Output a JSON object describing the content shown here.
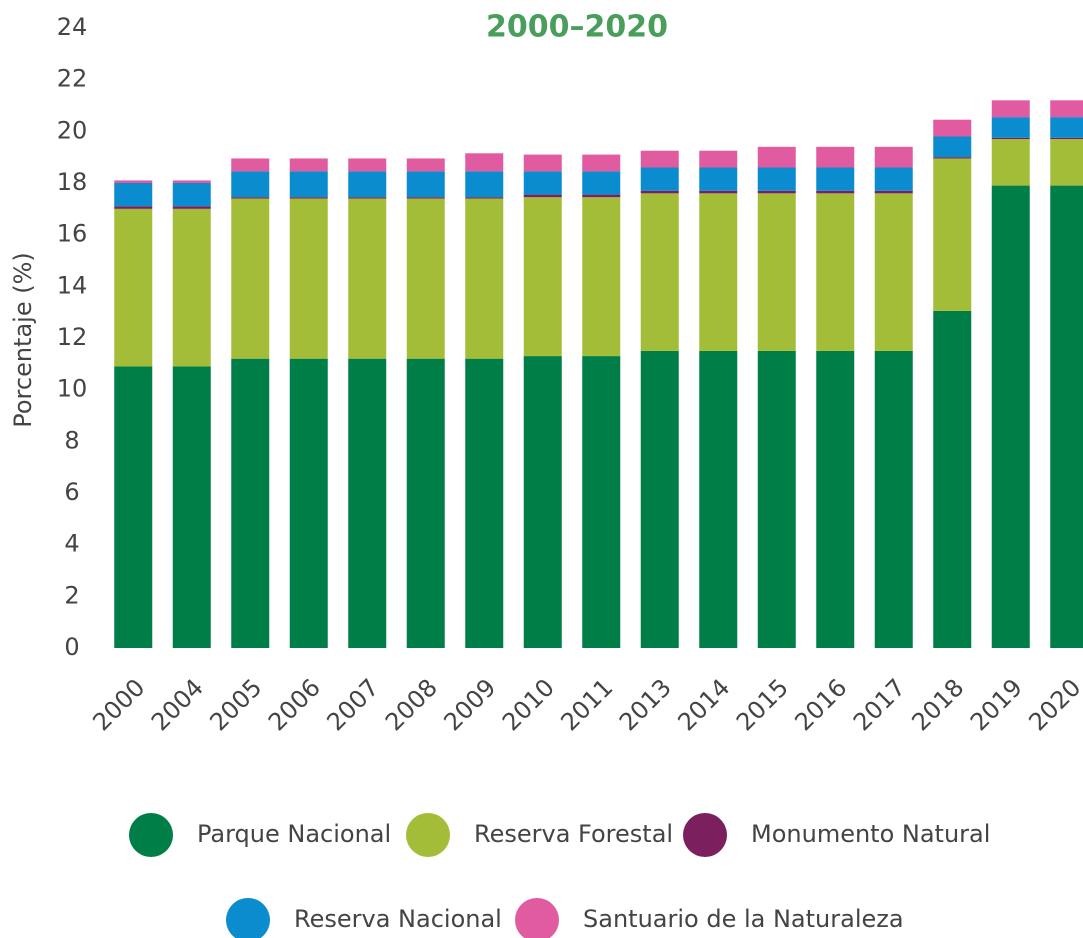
{
  "chart_data": {
    "type": "stacked_bar",
    "title": "2000–2020",
    "y_label": "Porcentaje (%)",
    "categories": [
      "2000",
      "2004",
      "2005",
      "2006",
      "2007",
      "2008",
      "2009",
      "2010",
      "2011",
      "2013",
      "2014",
      "2015",
      "2016",
      "2017",
      "2018",
      "2019",
      "2020"
    ],
    "series": [
      {
        "name": "Parque Nacional",
        "color": "#007e48",
        "values": [
          10.9,
          10.9,
          11.2,
          11.2,
          11.2,
          11.2,
          11.2,
          11.3,
          11.3,
          11.5,
          11.5,
          11.5,
          11.5,
          11.5,
          13.05,
          17.9,
          17.9
        ]
      },
      {
        "name": "Reserva Forestal",
        "color": "#a3bd38",
        "values": [
          6.1,
          6.1,
          6.2,
          6.2,
          6.2,
          6.2,
          6.2,
          6.15,
          6.15,
          6.1,
          6.1,
          6.1,
          6.1,
          6.1,
          5.9,
          1.8,
          1.8
        ]
      },
      {
        "name": "Monumento Natural",
        "color": "#7b1f5e",
        "values": [
          0.1,
          0.1,
          0.05,
          0.05,
          0.05,
          0.05,
          0.05,
          0.1,
          0.1,
          0.1,
          0.1,
          0.1,
          0.1,
          0.1,
          0.05,
          0.05,
          0.05
        ]
      },
      {
        "name": "Reserva Nacional",
        "color": "#0a8ccf",
        "values": [
          0.9,
          0.9,
          1.0,
          1.0,
          1.0,
          1.0,
          1.0,
          0.9,
          0.9,
          0.9,
          0.9,
          0.9,
          0.9,
          0.9,
          0.8,
          0.8,
          0.8
        ]
      },
      {
        "name": "Santuario de la Naturaleza",
        "color": "#e05ba0",
        "values": [
          0.1,
          0.1,
          0.5,
          0.5,
          0.5,
          0.5,
          0.7,
          0.65,
          0.65,
          0.65,
          0.65,
          0.8,
          0.8,
          0.8,
          0.65,
          0.65,
          0.65
        ]
      }
    ],
    "ylim": [
      0,
      24
    ],
    "yticks": [
      0,
      2,
      4,
      6,
      8,
      10,
      12,
      14,
      16,
      18,
      20,
      22,
      24
    ],
    "grid": false
  }
}
